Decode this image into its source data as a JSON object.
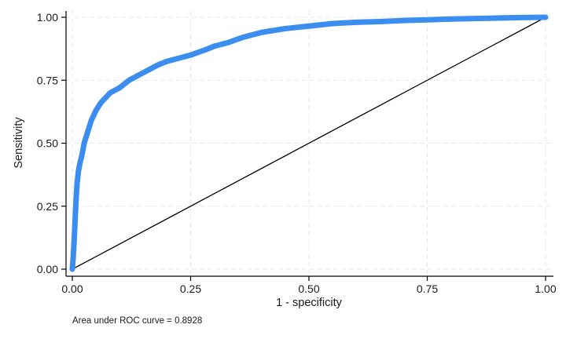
{
  "chart_data": {
    "type": "line",
    "title": "",
    "xlabel": "1 - specificity",
    "ylabel": "Sensitivity",
    "xlim": [
      0,
      1
    ],
    "ylim": [
      0,
      1
    ],
    "x_ticks": [
      "0.00",
      "0.25",
      "0.50",
      "0.75",
      "1.00"
    ],
    "y_ticks": [
      "0.00",
      "0.25",
      "0.50",
      "0.75",
      "1.00"
    ],
    "x_tick_values": [
      0,
      0.25,
      0.5,
      0.75,
      1
    ],
    "y_tick_values": [
      0,
      0.25,
      0.5,
      0.75,
      1
    ],
    "grid": true,
    "legend": "none",
    "note": "Area under ROC curve = 0.8928",
    "colors": {
      "roc": "#3b8ef0",
      "reference": "#000000",
      "grid": "#e8e8e8"
    },
    "series": [
      {
        "values_x": [
          0,
          0.002,
          0.004,
          0.006,
          0.008,
          0.01,
          0.013,
          0.016,
          0.02,
          0.025,
          0.03,
          0.035,
          0.04,
          0.05,
          0.06,
          0.07,
          0.08,
          0.09,
          0.1,
          0.12,
          0.14,
          0.16,
          0.18,
          0.2,
          0.22,
          0.25,
          0.28,
          0.3,
          0.33,
          0.36,
          0.4,
          0.45,
          0.5,
          0.55,
          0.6,
          0.65,
          0.7,
          0.75,
          0.8,
          0.85,
          0.9,
          0.95,
          1.0
        ],
        "values_y": [
          0,
          0.05,
          0.12,
          0.2,
          0.28,
          0.34,
          0.39,
          0.42,
          0.45,
          0.5,
          0.53,
          0.56,
          0.59,
          0.63,
          0.66,
          0.68,
          0.7,
          0.71,
          0.72,
          0.75,
          0.77,
          0.79,
          0.81,
          0.825,
          0.835,
          0.85,
          0.87,
          0.885,
          0.9,
          0.92,
          0.94,
          0.955,
          0.965,
          0.975,
          0.98,
          0.983,
          0.987,
          0.99,
          0.993,
          0.995,
          0.997,
          0.999,
          1.0
        ]
      },
      {
        "values_x": [
          0,
          1
        ],
        "values_y": [
          0,
          1
        ]
      }
    ]
  }
}
